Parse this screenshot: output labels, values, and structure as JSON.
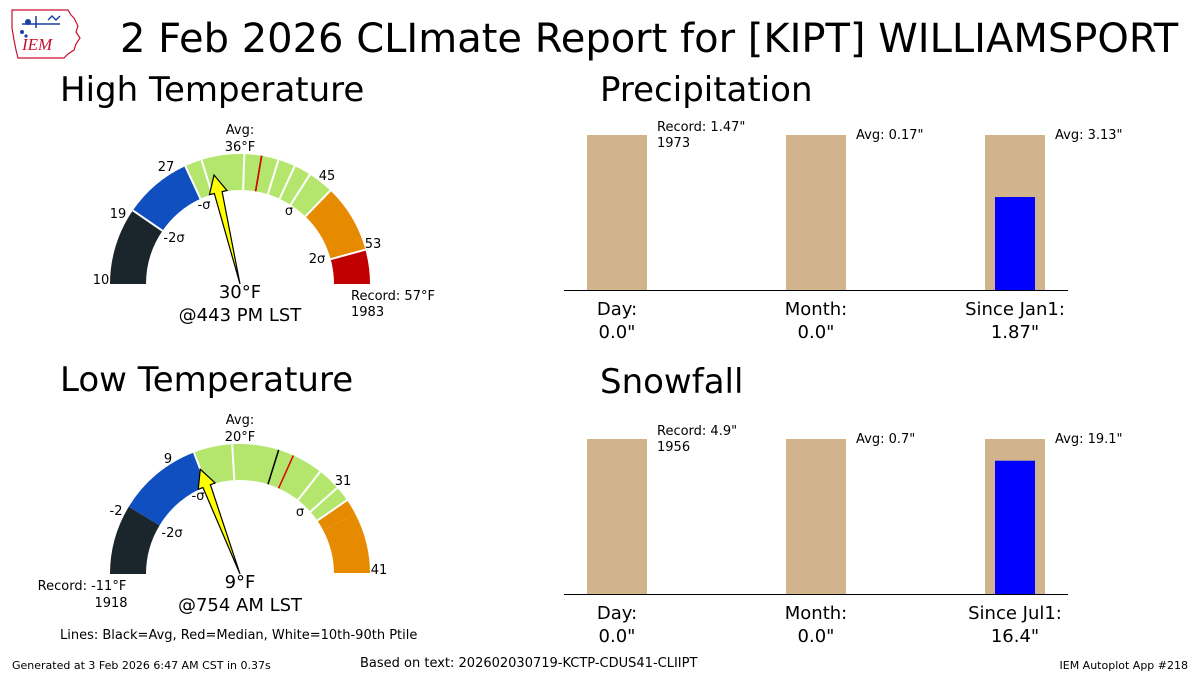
{
  "title": "2 Feb 2026 CLImate Report for [KIPT] WILLIAMSPORT",
  "logo": {
    "text": "IEM"
  },
  "high": {
    "title": "High Temperature",
    "avg_label": "Avg:",
    "avg_value": "36°F",
    "value_label": "30°F",
    "time_label": "@443 PM LST",
    "record_label": "Record: 57°F",
    "record_year": "1983"
  },
  "low": {
    "title": "Low Temperature",
    "avg_label": "Avg:",
    "avg_value": "20°F",
    "value_label": "9°F",
    "time_label": "@754 AM LST",
    "record_label": "Record: -11°F",
    "record_year": "1918"
  },
  "precip": {
    "title": "Precipitation",
    "cats": [
      "Day:",
      "Month:",
      "Since Jan1:"
    ],
    "values": [
      "0.0\"",
      "0.0\"",
      "1.87\""
    ],
    "annotations": [
      "Record: 1.47\"",
      "Avg: 0.17\"",
      "Avg: 3.13\""
    ],
    "annotation_year": "1973"
  },
  "snow": {
    "title": "Snowfall",
    "cats": [
      "Day:",
      "Month:",
      "Since Jul1:"
    ],
    "values": [
      "0.0\"",
      "0.0\"",
      "16.4\""
    ],
    "annotations": [
      "Record: 4.9\"",
      "Avg: 0.7\"",
      "Avg: 19.1\""
    ],
    "annotation_year": "1956"
  },
  "legend_note": "Lines: Black=Avg, Red=Median, White=10th-90th Ptile",
  "footer": {
    "generated": "Generated at 3 Feb 2026 6:47 AM CST in 0.37s",
    "based_on": "Based on text: 202602030719-KCTP-CDUS41-CLIIPT",
    "app": "IEM Autoplot App #218"
  },
  "colors": {
    "dark": "#1b262c",
    "blue": "#0f4fbf",
    "green": "#b4e66e",
    "orange": "#e68a00",
    "red": "#c00000",
    "tan": "#d2b48c",
    "bar": "#0000ff",
    "needle": "#ffff00"
  },
  "chart_data": [
    {
      "type": "gauge",
      "name": "High Temperature",
      "unit": "°F",
      "value": 30,
      "average": 36,
      "median": 36,
      "record": 57,
      "record_year": 1983,
      "range": [
        10,
        57
      ],
      "band_ticks": [
        10,
        19,
        27,
        45,
        53
      ],
      "bands": [
        {
          "from": 10,
          "to": 19,
          "label": "",
          "color": "dark"
        },
        {
          "from": 19,
          "to": 27,
          "label": "-2σ",
          "color": "blue"
        },
        {
          "from": 27,
          "to": 45,
          "label": "-σ … σ",
          "color": "green"
        },
        {
          "from": 45,
          "to": 53,
          "label": "2σ",
          "color": "orange"
        },
        {
          "from": 53,
          "to": 57,
          "label": "",
          "color": "red"
        }
      ],
      "percentile_lines": [
        29,
        34,
        38,
        40,
        42
      ],
      "sigma_labels": [
        {
          "text": "-2σ",
          "at": 21
        },
        {
          "text": "-σ",
          "at": 29
        },
        {
          "text": "σ",
          "at": 43
        },
        {
          "text": "2σ",
          "at": 51
        }
      ]
    },
    {
      "type": "gauge",
      "name": "Low Temperature",
      "unit": "°F",
      "value": 9,
      "average": 20,
      "median": 22,
      "record": -11,
      "record_year": 1918,
      "range": [
        -11,
        41
      ],
      "band_ticks": [
        -2,
        9,
        31,
        41
      ],
      "bands": [
        {
          "from": -11,
          "to": -2,
          "label": "",
          "color": "dark"
        },
        {
          "from": -2,
          "to": 9,
          "label": "-2σ",
          "color": "blue"
        },
        {
          "from": 9,
          "to": 31,
          "label": "-σ … σ",
          "color": "green"
        },
        {
          "from": 31,
          "to": 33,
          "label": "",
          "color": "orange"
        },
        {
          "from": 33,
          "to": 41,
          "label": "2σ",
          "color": "orange"
        }
      ],
      "percentile_lines": [
        14,
        26,
        29
      ],
      "sigma_labels": [
        {
          "text": "-2σ",
          "at": 2
        },
        {
          "text": "-σ",
          "at": 10
        },
        {
          "text": "σ",
          "at": 30
        }
      ]
    },
    {
      "type": "bar",
      "name": "Precipitation",
      "unit": "in",
      "categories": [
        "Day",
        "Month",
        "Since Jan1"
      ],
      "normalized_max": 1.0,
      "background_fraction": [
        1.0,
        1.0,
        1.0
      ],
      "observed_fraction": [
        0.0,
        0.0,
        0.6
      ],
      "reference": [
        {
          "label": "Record",
          "value": 1.47,
          "year": 1973
        },
        {
          "label": "Avg",
          "value": 0.17
        },
        {
          "label": "Avg",
          "value": 3.13
        }
      ],
      "observed": [
        0.0,
        0.0,
        1.87
      ]
    },
    {
      "type": "bar",
      "name": "Snowfall",
      "unit": "in",
      "categories": [
        "Day",
        "Month",
        "Since Jul1"
      ],
      "normalized_max": 1.0,
      "background_fraction": [
        1.0,
        1.0,
        1.0
      ],
      "observed_fraction": [
        0.0,
        0.0,
        0.86
      ],
      "reference": [
        {
          "label": "Record",
          "value": 4.9,
          "year": 1956
        },
        {
          "label": "Avg",
          "value": 0.7
        },
        {
          "label": "Avg",
          "value": 19.1
        }
      ],
      "observed": [
        0.0,
        0.0,
        16.4
      ]
    }
  ]
}
